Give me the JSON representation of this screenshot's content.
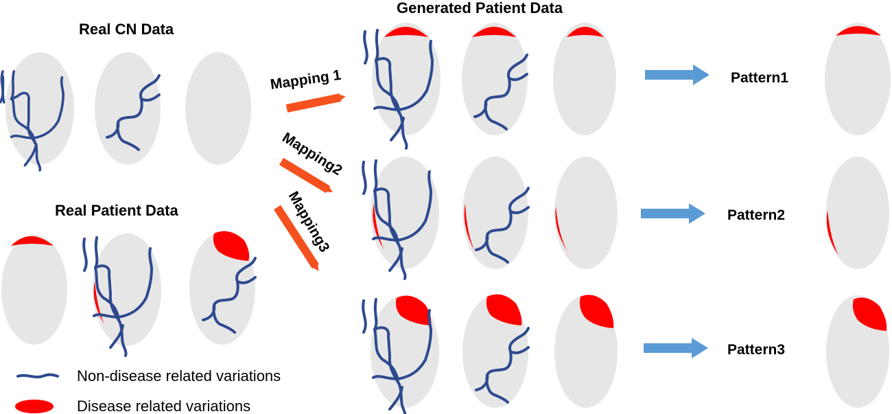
{
  "titles": {
    "real_cn": "Real CN Data",
    "real_patient": "Real Patient Data",
    "generated": "Generated Patient Data"
  },
  "mappings": [
    "Mapping 1",
    "Mapping2",
    "Mapping3"
  ],
  "patterns": [
    "Pattern1",
    "Pattern2",
    "Pattern3"
  ],
  "legend": {
    "non_disease": "Non-disease related variations",
    "disease": "Disease related variations"
  },
  "colors": {
    "blob": "#e6e6e6",
    "vein": "#2e4a8f",
    "disease": "#ff0000",
    "mapping_arrow": "#f4511e",
    "pattern_arrow": "#5b9bd5"
  }
}
